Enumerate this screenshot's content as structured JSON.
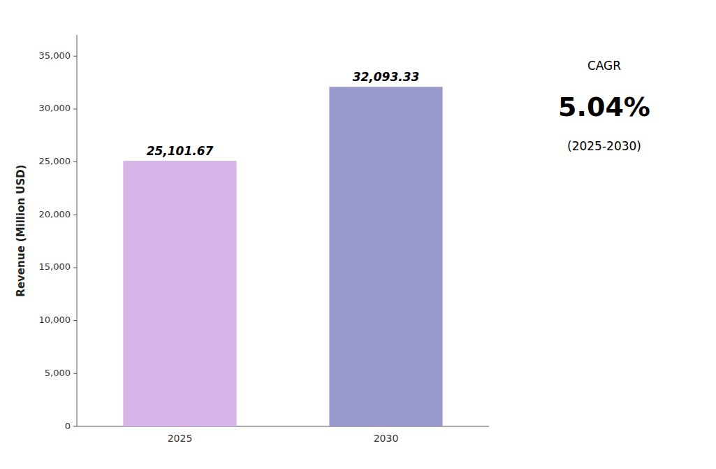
{
  "chart_data": {
    "type": "bar",
    "categories": [
      "2025",
      "2030"
    ],
    "values": [
      25101.67,
      32093.33
    ],
    "value_labels": [
      "25,101.67",
      "32,093.33"
    ],
    "colors": [
      "#d8b4e8",
      "#9999cc"
    ],
    "data_labels": true,
    "ylabel": "Revenue (Million USD)",
    "ylim": [
      0,
      37000
    ],
    "yticks": [
      0,
      {
        "value": 5000,
        "label": "5,000"
      },
      {
        "value": 10000,
        "label": "10,000"
      },
      {
        "value": 15000,
        "label": "15,000"
      },
      {
        "value": 20000,
        "label": "20,000"
      },
      {
        "value": 25000,
        "label": "25,000"
      },
      {
        "value": 30000,
        "label": "30,000"
      },
      {
        "value": 35000,
        "label": "35,000"
      }
    ],
    "annotations": [
      "CAGR",
      "5.04%",
      "(2025-2030)"
    ],
    "grid": false
  }
}
